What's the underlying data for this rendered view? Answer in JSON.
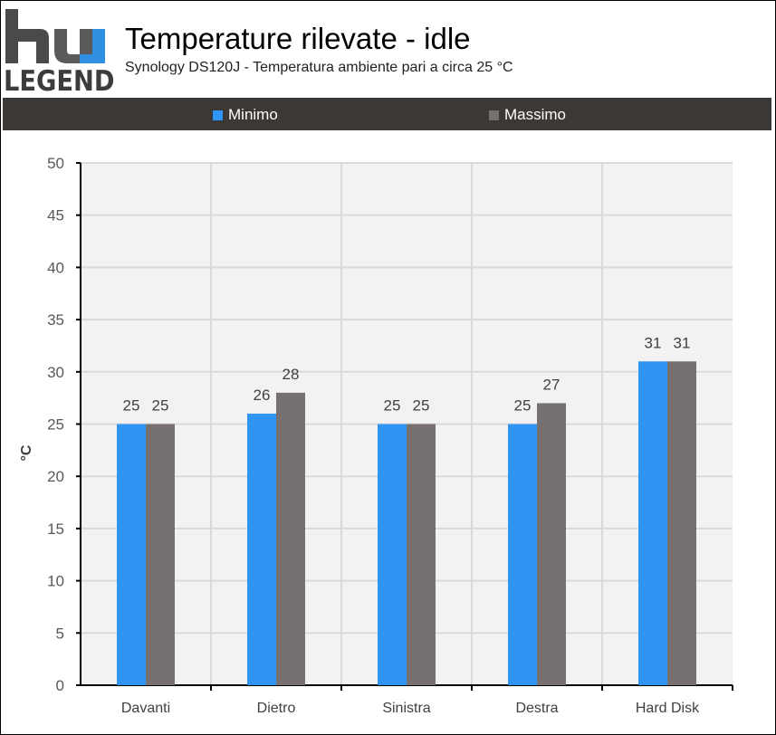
{
  "logo": {
    "mark_text": "hu",
    "word": "LEGEND",
    "mark_color": "#4a4a4a",
    "accent_color": "#2f8fe0"
  },
  "header": {
    "title": "Temperature rilevate - idle",
    "subtitle": "Synology DS120J - Temperatura ambiente pari a circa 25 °C"
  },
  "colors": {
    "minimo": "#2e95f5",
    "massimo": "#767070",
    "legend_bg": "#3b3835",
    "plot_bg": "#f2f2f2",
    "grid": "#d9d9d9"
  },
  "chart_data": {
    "type": "bar",
    "title": "Temperature rilevate - idle",
    "subtitle": "Synology DS120J - Temperatura ambiente pari a circa 25 °C",
    "categories": [
      "Davanti",
      "Dietro",
      "Sinistra",
      "Destra",
      "Hard Disk"
    ],
    "series": [
      {
        "name": "Minimo",
        "values": [
          25,
          26,
          25,
          25,
          31
        ]
      },
      {
        "name": "Massimo",
        "values": [
          25,
          28,
          25,
          27,
          31
        ]
      }
    ],
    "ylabel": "°C",
    "xlabel": "",
    "ylim": [
      0,
      50
    ],
    "yticks": [
      0,
      5,
      10,
      15,
      20,
      25,
      30,
      35,
      40,
      45,
      50
    ],
    "grid": true,
    "legend_position": "top"
  }
}
